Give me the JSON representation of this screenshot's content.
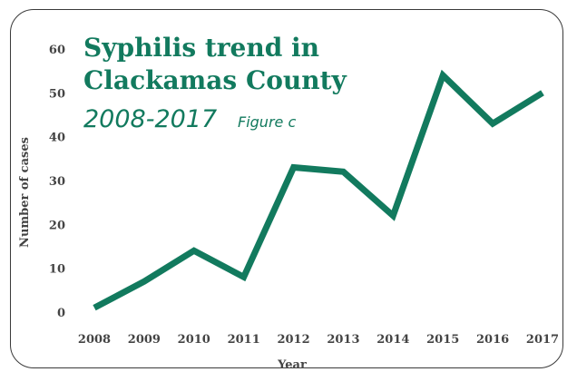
{
  "chart_data": {
    "type": "line",
    "title_line1": "Syphilis trend in",
    "title_line2": "Clackamas County",
    "subtitle": "2008-2017",
    "figure_label": "Figure c",
    "xlabel": "Year",
    "ylabel": "Number of cases",
    "categories": [
      "2008",
      "2009",
      "2010",
      "2011",
      "2012",
      "2013",
      "2014",
      "2015",
      "2016",
      "2017"
    ],
    "y_ticks": [
      "0",
      "10",
      "20",
      "30",
      "40",
      "50",
      "60"
    ],
    "ylim": [
      0,
      60
    ],
    "grid": false,
    "series": [
      {
        "values": [
          1,
          7,
          14,
          8,
          33,
          32,
          22,
          54,
          43,
          50
        ]
      }
    ],
    "line_color": "#127a5e"
  }
}
